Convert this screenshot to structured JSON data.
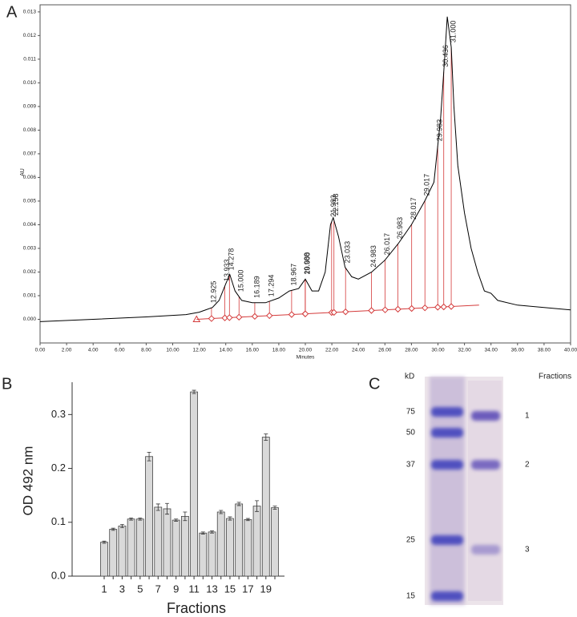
{
  "chart_data": [
    {
      "type": "line",
      "panel": "A",
      "y_label": "AU",
      "x_label": "Minutes",
      "color": "#000000",
      "fraction_color": "#d43a3a",
      "x": [
        0,
        4,
        8,
        11,
        12,
        13,
        13.5,
        14.0,
        14.3,
        14.7,
        15.2,
        16,
        17,
        18,
        18.8,
        19.5,
        20,
        20.5,
        21,
        21.5,
        21.9,
        22.1,
        22.5,
        23,
        23.5,
        24,
        25,
        26,
        27,
        28,
        29,
        29.7,
        30.2,
        30.5,
        30.7,
        31.0,
        31.2,
        31.5,
        32,
        32.5,
        33,
        33.5,
        34,
        34.5,
        36,
        38,
        40
      ],
      "values": [
        -0.0001,
        0.0,
        0.0001,
        0.0002,
        0.0003,
        0.0005,
        0.0008,
        0.0015,
        0.0019,
        0.0012,
        0.0008,
        0.0007,
        0.0007,
        0.0009,
        0.0012,
        0.0013,
        0.0017,
        0.0012,
        0.0012,
        0.002,
        0.004,
        0.0043,
        0.0035,
        0.0022,
        0.0018,
        0.0017,
        0.002,
        0.0025,
        0.0032,
        0.004,
        0.005,
        0.0058,
        0.0085,
        0.011,
        0.0128,
        0.0115,
        0.009,
        0.0065,
        0.0045,
        0.003,
        0.002,
        0.0012,
        0.0011,
        0.0008,
        0.0006,
        0.0005,
        0.0004
      ],
      "peak_x": [
        12.925,
        13.933,
        14.278,
        15.0,
        16.189,
        17.294,
        18.967,
        19.988,
        20.0,
        21.983,
        22.158,
        23.033,
        24.983,
        26.017,
        26.983,
        28.017,
        29.017,
        29.983,
        30.436,
        31.0
      ],
      "peak_labels": [
        "12.925",
        "13.933",
        "14.278",
        "15.000",
        "16.189",
        "17.294",
        "18.967",
        "19.988",
        "20.000",
        "21.983",
        "22.158",
        "23.033",
        "24.983",
        "26.017",
        "26.983",
        "28.017",
        "29.017",
        "29.983",
        "30.436",
        "31.000"
      ],
      "baseline_x": [
        11.8,
        33.1
      ],
      "baseline_values": [
        0.0,
        0.0006
      ],
      "xlim": [
        0,
        40
      ],
      "ylim": [
        -0.001,
        0.0133
      ],
      "xticks": [
        {
          "value": 0,
          "label": "0.00"
        },
        {
          "value": 2,
          "label": "2.00"
        },
        {
          "value": 4,
          "label": "4.00"
        },
        {
          "value": 6,
          "label": "6.00"
        },
        {
          "value": 8,
          "label": "8.00"
        },
        {
          "value": 10,
          "label": "10.00"
        },
        {
          "value": 12,
          "label": "12.00"
        },
        {
          "value": 14,
          "label": "14.00"
        },
        {
          "value": 16,
          "label": "16.00"
        },
        {
          "value": 18,
          "label": "18.00"
        },
        {
          "value": 20,
          "label": "20.00"
        },
        {
          "value": 22,
          "label": "22.00"
        },
        {
          "value": 24,
          "label": "24.00"
        },
        {
          "value": 26,
          "label": "26.00"
        },
        {
          "value": 28,
          "label": "28.00"
        },
        {
          "value": 30,
          "label": "30.00"
        },
        {
          "value": 32,
          "label": "32.00"
        },
        {
          "value": 34,
          "label": "34.00"
        },
        {
          "value": 36,
          "label": "36.00"
        },
        {
          "value": 38,
          "label": "38.00"
        },
        {
          "value": 40,
          "label": "40.00"
        }
      ],
      "yticks": [
        {
          "value": 0,
          "label": "0.000"
        },
        {
          "value": 0.001,
          "label": "0.001"
        },
        {
          "value": 0.002,
          "label": "0.002"
        },
        {
          "value": 0.003,
          "label": "0.003"
        },
        {
          "value": 0.004,
          "label": "0.004"
        },
        {
          "value": 0.005,
          "label": "0.005"
        },
        {
          "value": 0.006,
          "label": "0.006"
        },
        {
          "value": 0.007,
          "label": "0.007"
        },
        {
          "value": 0.008,
          "label": "0.008"
        },
        {
          "value": 0.009,
          "label": "0.009"
        },
        {
          "value": 0.01,
          "label": "0.010"
        },
        {
          "value": 0.011,
          "label": "0.011"
        },
        {
          "value": 0.012,
          "label": "0.012"
        },
        {
          "value": 0.013,
          "label": "0.013"
        }
      ]
    },
    {
      "type": "bar",
      "panel": "B",
      "y_label": "OD 492 nm",
      "x_label": "Fractions",
      "color": "#d9d9d9",
      "categories": [
        "1",
        null,
        "3",
        null,
        "5",
        null,
        "7",
        null,
        "9",
        null,
        "11",
        null,
        "13",
        null,
        "15",
        null,
        "17",
        null,
        "19",
        null
      ],
      "values": [
        0.063,
        0.087,
        0.093,
        0.106,
        0.106,
        0.222,
        0.128,
        0.125,
        0.104,
        0.111,
        0.342,
        0.08,
        0.082,
        0.119,
        0.107,
        0.134,
        0.105,
        0.13,
        0.258,
        0.127
      ],
      "errors": [
        0.002,
        0.002,
        0.003,
        0.002,
        0.002,
        0.008,
        0.006,
        0.01,
        0.002,
        0.008,
        0.003,
        0.002,
        0.002,
        0.003,
        0.003,
        0.003,
        0.002,
        0.01,
        0.006,
        0.003
      ],
      "ylim": [
        0,
        0.36
      ],
      "yticks": [
        {
          "value": 0,
          "label": "0.0"
        },
        0.1,
        0.2,
        0.3
      ]
    },
    {
      "type": "gel",
      "panel": "C",
      "marker_title": "kD",
      "fraction_title": "Fractions",
      "markers": [
        75,
        50,
        37,
        25,
        15
      ],
      "fractions": [
        1,
        2,
        3
      ]
    }
  ]
}
